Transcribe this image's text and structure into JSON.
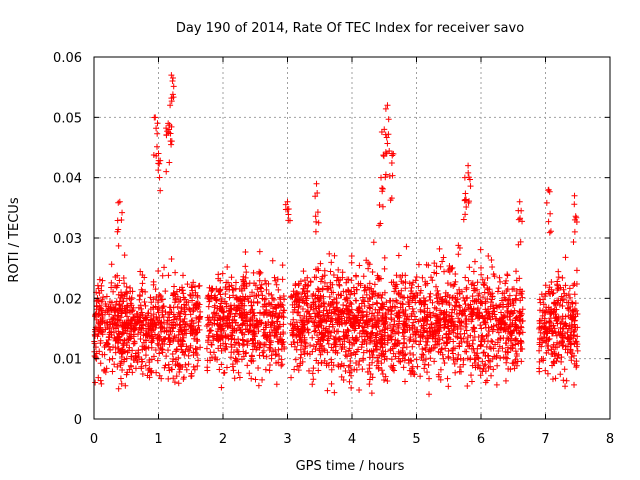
{
  "chart_data": {
    "type": "scatter",
    "title": "Day 190 of 2014, Rate Of TEC Index for receiver savo",
    "xlabel": "GPS time / hours",
    "ylabel": "ROTI / TECUs",
    "xlim": [
      0,
      8
    ],
    "ylim": [
      0,
      0.06
    ],
    "xticks": [
      "0",
      "1",
      "2",
      "3",
      "4",
      "5",
      "6",
      "7",
      "8"
    ],
    "yticks": [
      "0",
      "0.01",
      "0.02",
      "0.03",
      "0.04",
      "0.05",
      "0.06"
    ],
    "grid": true,
    "marker": "+",
    "color": "#ff0000",
    "series": [
      {
        "name": "ROTI",
        "segments": [
          {
            "x_start": 0.0,
            "x_end": 1.65,
            "y_min": 0.005,
            "y_max": 0.03
          },
          {
            "x_start": 1.75,
            "x_end": 2.95,
            "y_min": 0.005,
            "y_max": 0.031
          },
          {
            "x_start": 3.05,
            "x_end": 6.65,
            "y_min": 0.004,
            "y_max": 0.032
          },
          {
            "x_start": 6.9,
            "x_end": 7.5,
            "y_min": 0.005,
            "y_max": 0.03
          }
        ],
        "peaks": [
          {
            "x": 0.95,
            "y": 0.05
          },
          {
            "x": 1.0,
            "y": 0.044
          },
          {
            "x": 1.2,
            "y": 0.057
          },
          {
            "x": 1.18,
            "y": 0.052
          },
          {
            "x": 1.15,
            "y": 0.049
          },
          {
            "x": 4.55,
            "y": 0.052
          },
          {
            "x": 4.5,
            "y": 0.048
          },
          {
            "x": 4.45,
            "y": 0.04
          },
          {
            "x": 4.62,
            "y": 0.044
          },
          {
            "x": 5.75,
            "y": 0.04
          },
          {
            "x": 5.8,
            "y": 0.042
          },
          {
            "x": 3.45,
            "y": 0.039
          },
          {
            "x": 6.6,
            "y": 0.036
          },
          {
            "x": 7.05,
            "y": 0.038
          },
          {
            "x": 7.45,
            "y": 0.037
          },
          {
            "x": 0.4,
            "y": 0.036
          },
          {
            "x": 3.0,
            "y": 0.036
          }
        ]
      }
    ]
  }
}
